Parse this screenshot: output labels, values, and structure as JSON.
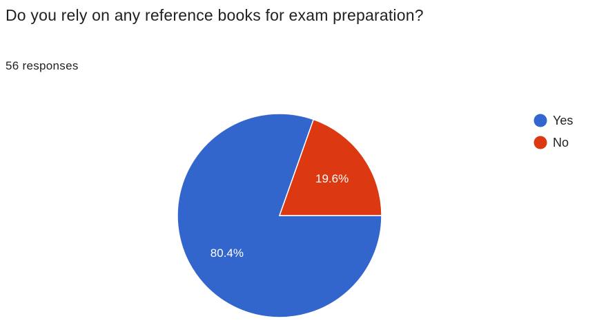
{
  "question": {
    "title": "Do you rely on any reference books for exam preparation?",
    "responses": "56 responses"
  },
  "chart_data": {
    "type": "pie",
    "categories": [
      "Yes",
      "No"
    ],
    "values": [
      80.4,
      19.6
    ],
    "labels": [
      "80.4%",
      "19.6%"
    ],
    "colors": [
      "#3366cc",
      "#dc3912"
    ],
    "legend": "right"
  }
}
